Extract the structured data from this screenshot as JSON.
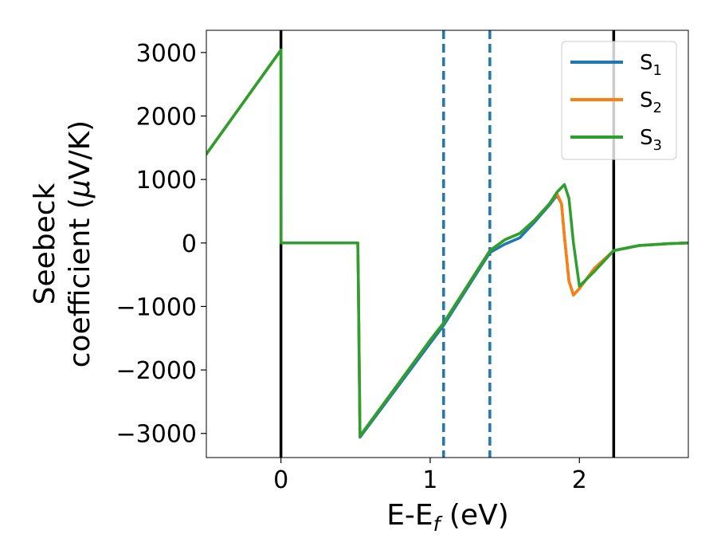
{
  "chart_data": {
    "type": "line",
    "xlabel": {
      "main": "E-E",
      "sub": "f",
      "unit": " (eV)"
    },
    "ylabel": {
      "line1": "Seebeck",
      "line2_prefix": "coefficient  (",
      "mu": "μ",
      "line2_suffix": "V/K)"
    },
    "xlim": [
      -0.5,
      2.73
    ],
    "ylim": [
      -3380,
      3350
    ],
    "xticks": [
      0,
      1,
      2
    ],
    "yticks": [
      3000,
      2000,
      1000,
      0,
      -1000,
      -2000,
      -3000
    ],
    "ytick_labels": [
      "3000",
      "2000",
      "1000",
      "0",
      "−1000",
      "−2000",
      "−3000"
    ],
    "xtick_labels": [
      "0",
      "1",
      "2"
    ],
    "grid": false,
    "legend_position": "top-right",
    "vlines": [
      {
        "x": 0,
        "style": "solid",
        "color": "#000000"
      },
      {
        "x": 2.23,
        "style": "solid",
        "color": "#000000"
      },
      {
        "x": 1.09,
        "style": "dashed",
        "color": "#1f77b4"
      },
      {
        "x": 1.4,
        "style": "dashed",
        "color": "#1f77b4"
      }
    ],
    "series": [
      {
        "name_main": "S",
        "name_sub": "1",
        "color": "#1f77b4",
        "x": [
          -0.5,
          0.0,
          0.001,
          0.515,
          0.518,
          0.53,
          1.0,
          1.09,
          1.4,
          1.5,
          1.6,
          1.7,
          1.8,
          1.85,
          1.88,
          1.9,
          1.93,
          1.96,
          2.0,
          2.1,
          2.23,
          2.4,
          2.6,
          2.73
        ],
        "y": [
          1400,
          3040,
          0,
          0,
          -500,
          -3060,
          -1580,
          -1300,
          -150,
          -20,
          80,
          330,
          600,
          750,
          620,
          100,
          -600,
          -820,
          -720,
          -400,
          -120,
          -40,
          -10,
          0
        ]
      },
      {
        "name_main": "S",
        "name_sub": "2",
        "color": "#ff7f0e",
        "x": [
          -0.5,
          0.0,
          0.001,
          0.515,
          0.518,
          0.53,
          1.0,
          1.09,
          1.4,
          1.5,
          1.6,
          1.7,
          1.8,
          1.85,
          1.88,
          1.9,
          1.93,
          1.96,
          2.0,
          2.1,
          2.23,
          2.4,
          2.6,
          2.73
        ],
        "y": [
          1400,
          3040,
          0,
          0,
          -500,
          -3040,
          -1530,
          -1260,
          -120,
          50,
          150,
          360,
          620,
          780,
          620,
          100,
          -600,
          -820,
          -720,
          -400,
          -120,
          -40,
          -10,
          0
        ]
      },
      {
        "name_main": "S",
        "name_sub": "3",
        "color": "#2ca02c",
        "x": [
          -0.5,
          0.0,
          0.001,
          0.515,
          0.518,
          0.53,
          1.0,
          1.09,
          1.4,
          1.5,
          1.6,
          1.7,
          1.8,
          1.85,
          1.9,
          1.93,
          1.96,
          2.0,
          2.1,
          2.23,
          2.4,
          2.6,
          2.73
        ],
        "y": [
          1400,
          3040,
          0,
          0,
          -500,
          -3040,
          -1530,
          -1260,
          -120,
          50,
          150,
          360,
          620,
          800,
          920,
          700,
          0,
          -680,
          -450,
          -120,
          -40,
          -10,
          0
        ]
      }
    ]
  }
}
